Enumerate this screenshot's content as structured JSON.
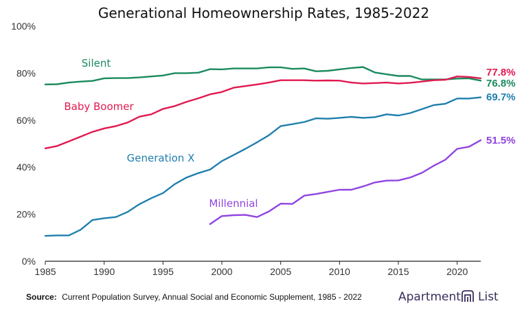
{
  "chart_data": {
    "type": "line",
    "title": "Generational Homeownership Rates, 1985-2022",
    "xlabel": "",
    "ylabel": "",
    "xlim": [
      1985,
      2022
    ],
    "ylim": [
      0,
      100
    ],
    "x_ticks": [
      1985,
      1990,
      1995,
      2000,
      2005,
      2010,
      2015,
      2020
    ],
    "y_ticks": [
      0,
      20,
      40,
      60,
      80,
      100
    ],
    "y_tick_format": "%",
    "grid": false,
    "legend": "inline labels",
    "series": [
      {
        "name": "Silent",
        "color": "#1a8a5e",
        "end_label": "76.8%",
        "x": [
          1985,
          1986,
          1987,
          1988,
          1989,
          1990,
          1991,
          1992,
          1993,
          1994,
          1995,
          1996,
          1997,
          1998,
          1999,
          2000,
          2001,
          2002,
          2003,
          2004,
          2005,
          2006,
          2007,
          2008,
          2009,
          2010,
          2011,
          2012,
          2013,
          2014,
          2015,
          2016,
          2017,
          2018,
          2019,
          2020,
          2021,
          2022
        ],
        "values": [
          75.2,
          75.3,
          76.0,
          76.4,
          76.7,
          77.8,
          77.9,
          77.9,
          78.2,
          78.6,
          79.0,
          80.0,
          80.0,
          80.2,
          81.7,
          81.6,
          82.0,
          82.0,
          82.0,
          82.5,
          82.5,
          81.8,
          82.0,
          80.8,
          81.0,
          81.6,
          82.2,
          82.6,
          80.3,
          79.5,
          78.8,
          78.8,
          77.3,
          77.3,
          77.3,
          77.7,
          77.8,
          76.8
        ]
      },
      {
        "name": "Baby Boomer",
        "color": "#e0194f",
        "end_label": "77.8%",
        "x": [
          1985,
          1986,
          1987,
          1988,
          1989,
          1990,
          1991,
          1992,
          1993,
          1994,
          1995,
          1996,
          1997,
          1998,
          1999,
          2000,
          2001,
          2002,
          2003,
          2004,
          2005,
          2006,
          2007,
          2008,
          2009,
          2010,
          2011,
          2012,
          2013,
          2014,
          2015,
          2016,
          2017,
          2018,
          2019,
          2020,
          2021,
          2022
        ],
        "values": [
          48.0,
          49.0,
          51.0,
          53.0,
          55.0,
          56.5,
          57.5,
          59.0,
          61.5,
          62.5,
          64.8,
          66.0,
          67.8,
          69.3,
          71.0,
          72.0,
          73.8,
          74.5,
          75.2,
          76.0,
          77.0,
          77.0,
          77.0,
          76.8,
          76.9,
          76.8,
          76.0,
          75.6,
          75.8,
          76.0,
          75.6,
          75.9,
          76.4,
          77.0,
          77.2,
          78.6,
          78.4,
          77.8
        ]
      },
      {
        "name": "Generation X",
        "color": "#1f7fad",
        "end_label": "69.7%",
        "x": [
          1985,
          1986,
          1987,
          1988,
          1989,
          1990,
          1991,
          1992,
          1993,
          1994,
          1995,
          1996,
          1997,
          1998,
          1999,
          2000,
          2001,
          2002,
          2003,
          2004,
          2005,
          2006,
          2007,
          2008,
          2009,
          2010,
          2011,
          2012,
          2013,
          2014,
          2015,
          2016,
          2017,
          2018,
          2019,
          2020,
          2021,
          2022
        ],
        "values": [
          10.8,
          11.0,
          11.0,
          13.4,
          17.5,
          18.3,
          18.8,
          21.0,
          24.3,
          26.8,
          29.0,
          32.8,
          35.6,
          37.5,
          39.0,
          42.6,
          45.2,
          47.8,
          50.6,
          53.6,
          57.5,
          58.3,
          59.2,
          60.8,
          60.6,
          61.0,
          61.4,
          61.0,
          61.3,
          62.5,
          62.0,
          63.0,
          64.7,
          66.4,
          67.0,
          69.2,
          69.2,
          69.7
        ]
      },
      {
        "name": "Millennial",
        "color": "#8f44e0",
        "end_label": "51.5%",
        "x": [
          1999,
          2000,
          2001,
          2002,
          2003,
          2004,
          2005,
          2006,
          2007,
          2008,
          2009,
          2010,
          2011,
          2012,
          2013,
          2014,
          2015,
          2016,
          2017,
          2018,
          2019,
          2020,
          2021,
          2022
        ],
        "values": [
          15.8,
          19.2,
          19.6,
          19.7,
          18.8,
          21.2,
          24.5,
          24.4,
          27.9,
          28.6,
          29.5,
          30.4,
          30.4,
          31.8,
          33.5,
          34.3,
          34.4,
          35.6,
          37.6,
          40.6,
          43.2,
          47.8,
          48.7,
          51.5
        ]
      }
    ]
  },
  "source": {
    "label": "Source:",
    "text": "Current Population Survey, Annual Social and Economic Supplement, 1985 - 2022"
  },
  "brand": {
    "left": "Apartment",
    "right": "List",
    "icon": "apartment-list-logo-icon",
    "color": "#3a2d5c"
  }
}
